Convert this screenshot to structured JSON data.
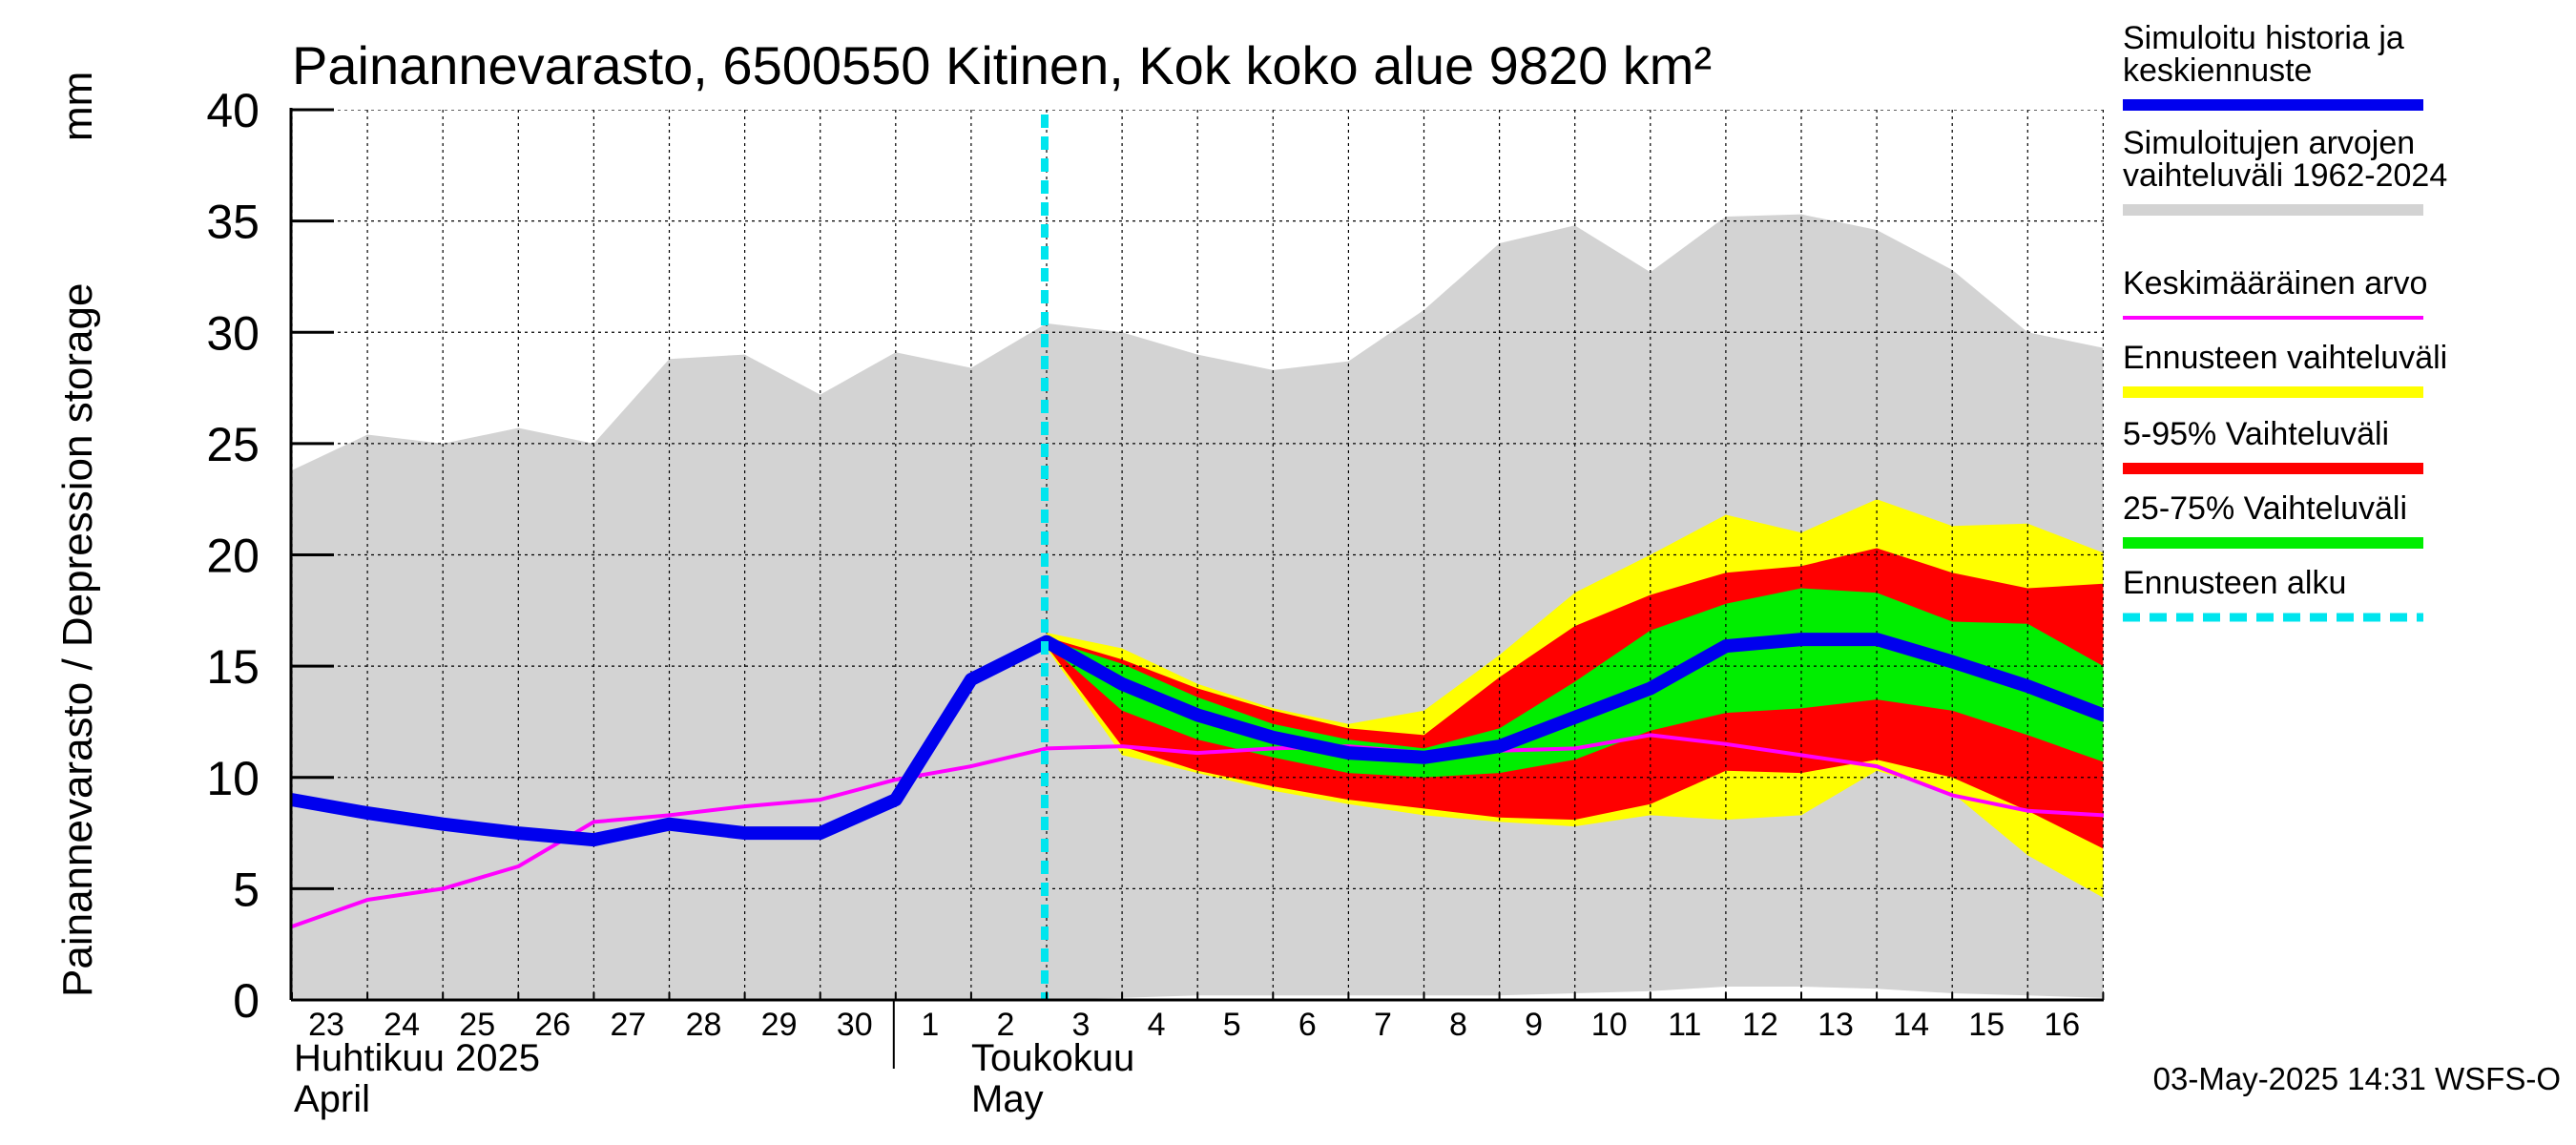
{
  "chart_data": {
    "type": "area",
    "title": "Painannevarasto, 6500550 Kitinen, Kok koko alue 9820 km²",
    "ylabel": "Painannevarasto / Depression storage",
    "yunit": "mm",
    "ylim": [
      0,
      40
    ],
    "yticks": [
      "0",
      "5",
      "10",
      "15",
      "20",
      "25",
      "30",
      "35",
      "40"
    ],
    "grid": true,
    "legend_position": "right",
    "x_day_labels": [
      "23",
      "24",
      "25",
      "26",
      "27",
      "28",
      "29",
      "30",
      "1",
      "2",
      "3",
      "4",
      "5",
      "6",
      "7",
      "8",
      "9",
      "10",
      "11",
      "12",
      "13",
      "14",
      "15",
      "16"
    ],
    "month_labels": {
      "april_fi": "Huhtikuu  2025",
      "april_en": "April",
      "may_fi": "Toukokuu",
      "may_en": "May"
    },
    "dates": [
      "2025-04-23",
      "2025-04-24",
      "2025-04-25",
      "2025-04-26",
      "2025-04-27",
      "2025-04-28",
      "2025-04-29",
      "2025-04-30",
      "2025-05-01",
      "2025-05-02",
      "2025-05-03",
      "2025-05-04",
      "2025-05-05",
      "2025-05-06",
      "2025-05-07",
      "2025-05-08",
      "2025-05-09",
      "2025-05-10",
      "2025-05-11",
      "2025-05-12",
      "2025-05-13",
      "2025-05-14",
      "2025-05-15",
      "2025-05-16",
      "2025-05-17"
    ],
    "forecast_start": "2025-05-03",
    "series": [
      {
        "name": "Simuloitujen arvojen vaihteluväli 1962-2024",
        "kind": "band",
        "color": "#d3d3d3",
        "dates": [
          "2025-04-23",
          "2025-04-24",
          "2025-04-25",
          "2025-04-26",
          "2025-04-27",
          "2025-04-28",
          "2025-04-29",
          "2025-04-30",
          "2025-05-01",
          "2025-05-02",
          "2025-05-03",
          "2025-05-04",
          "2025-05-05",
          "2025-05-06",
          "2025-05-07",
          "2025-05-08",
          "2025-05-09",
          "2025-05-10",
          "2025-05-11",
          "2025-05-12",
          "2025-05-13",
          "2025-05-14",
          "2025-05-15",
          "2025-05-16",
          "2025-05-17"
        ],
        "low": [
          0,
          0,
          0,
          0,
          0,
          0,
          0,
          0,
          0,
          0,
          0,
          0.1,
          0.2,
          0.2,
          0.2,
          0.2,
          0.2,
          0.3,
          0.4,
          0.6,
          0.6,
          0.5,
          0.3,
          0.2,
          0.1
        ],
        "high": [
          23.8,
          25.4,
          25.0,
          25.7,
          25.0,
          28.8,
          29.0,
          27.2,
          29.1,
          28.4,
          30.4,
          30.0,
          29.0,
          28.3,
          28.7,
          31.0,
          34.0,
          34.8,
          32.7,
          35.2,
          35.3,
          34.6,
          32.8,
          30.0,
          29.3
        ]
      },
      {
        "name": "Ennusteen vaihteluväli",
        "kind": "band",
        "color": "#ffff00",
        "dates": [
          "2025-05-03",
          "2025-05-04",
          "2025-05-05",
          "2025-05-06",
          "2025-05-07",
          "2025-05-08",
          "2025-05-09",
          "2025-05-10",
          "2025-05-11",
          "2025-05-12",
          "2025-05-13",
          "2025-05-14",
          "2025-05-15",
          "2025-05-16",
          "2025-05-17"
        ],
        "low": [
          15.8,
          11.0,
          10.2,
          9.4,
          8.8,
          8.3,
          8.0,
          7.8,
          8.3,
          8.1,
          8.3,
          10.3,
          9.3,
          6.5,
          4.6
        ],
        "high": [
          16.5,
          15.8,
          14.2,
          13.1,
          12.4,
          13.0,
          15.5,
          18.3,
          20.0,
          21.8,
          21.0,
          22.5,
          21.3,
          21.4,
          20.1
        ]
      },
      {
        "name": "5-95% Vaihteluväli",
        "kind": "band",
        "color": "#ff0000",
        "dates": [
          "2025-05-03",
          "2025-05-04",
          "2025-05-05",
          "2025-05-06",
          "2025-05-07",
          "2025-05-08",
          "2025-05-09",
          "2025-05-10",
          "2025-05-11",
          "2025-05-12",
          "2025-05-13",
          "2025-05-14",
          "2025-05-15",
          "2025-05-16",
          "2025-05-17"
        ],
        "low": [
          15.9,
          11.4,
          10.3,
          9.6,
          9.0,
          8.6,
          8.2,
          8.1,
          8.8,
          10.3,
          10.2,
          10.8,
          10.0,
          8.5,
          6.8
        ],
        "high": [
          16.3,
          15.3,
          14.0,
          13.0,
          12.2,
          11.9,
          14.5,
          16.8,
          18.2,
          19.2,
          19.5,
          20.3,
          19.2,
          18.5,
          18.7
        ]
      },
      {
        "name": "25-75% Vaihteluväli",
        "kind": "band",
        "color": "#00ee00",
        "dates": [
          "2025-05-03",
          "2025-05-04",
          "2025-05-05",
          "2025-05-06",
          "2025-05-07",
          "2025-05-08",
          "2025-05-09",
          "2025-05-10",
          "2025-05-11",
          "2025-05-12",
          "2025-05-13",
          "2025-05-14",
          "2025-05-15",
          "2025-05-16",
          "2025-05-17"
        ],
        "low": [
          16.0,
          13.0,
          11.7,
          10.9,
          10.2,
          10.0,
          10.2,
          10.8,
          12.1,
          12.9,
          13.1,
          13.5,
          13.0,
          11.9,
          10.7
        ],
        "high": [
          16.2,
          15.1,
          13.6,
          12.4,
          11.7,
          11.3,
          12.2,
          14.3,
          16.6,
          17.8,
          18.5,
          18.3,
          17.0,
          16.9,
          15.0
        ]
      },
      {
        "name": "Keskimääräinen arvo",
        "kind": "line",
        "color": "#ff00ff",
        "dates": [
          "2025-04-23",
          "2025-04-24",
          "2025-04-25",
          "2025-04-26",
          "2025-04-27",
          "2025-04-28",
          "2025-04-29",
          "2025-04-30",
          "2025-05-01",
          "2025-05-02",
          "2025-05-03",
          "2025-05-04",
          "2025-05-05",
          "2025-05-06",
          "2025-05-07",
          "2025-05-08",
          "2025-05-09",
          "2025-05-10",
          "2025-05-11",
          "2025-05-12",
          "2025-05-13",
          "2025-05-14",
          "2025-05-15",
          "2025-05-16",
          "2025-05-17"
        ],
        "values": [
          3.3,
          4.5,
          5.0,
          6.0,
          8.0,
          8.3,
          8.7,
          9.0,
          9.9,
          10.5,
          11.3,
          11.4,
          11.1,
          11.3,
          11.4,
          11.1,
          11.2,
          11.3,
          11.9,
          11.5,
          11.0,
          10.5,
          9.2,
          8.5,
          8.3
        ]
      },
      {
        "name": "Simuloitu historia ja keskiennuste",
        "kind": "line",
        "color": "#0000ee",
        "dates": [
          "2025-04-23",
          "2025-04-24",
          "2025-04-25",
          "2025-04-26",
          "2025-04-27",
          "2025-04-28",
          "2025-04-29",
          "2025-04-30",
          "2025-05-01",
          "2025-05-02",
          "2025-05-03",
          "2025-05-04",
          "2025-05-05",
          "2025-05-06",
          "2025-05-07",
          "2025-05-08",
          "2025-05-09",
          "2025-05-10",
          "2025-05-11",
          "2025-05-12",
          "2025-05-13",
          "2025-05-14",
          "2025-05-15",
          "2025-05-16",
          "2025-05-17"
        ],
        "values": [
          9.0,
          8.4,
          7.9,
          7.5,
          7.2,
          7.9,
          7.5,
          7.5,
          9.0,
          14.4,
          16.1,
          14.2,
          12.8,
          11.8,
          11.1,
          10.9,
          11.4,
          12.7,
          14.0,
          15.9,
          16.2,
          16.2,
          15.2,
          14.1,
          12.8
        ]
      }
    ],
    "legend": [
      {
        "label": "Simuloitu historia ja keskiennuste",
        "color": "#0000ee",
        "style": "thick"
      },
      {
        "label": "Simuloitujen arvojen vaihteluväli 1962-2024",
        "color": "#d3d3d3",
        "style": "thick"
      },
      {
        "label": "Keskimääräinen arvo",
        "color": "#ff00ff",
        "style": "thin"
      },
      {
        "label": "Ennusteen vaihteluväli",
        "color": "#ffff00",
        "style": "thick"
      },
      {
        "label": "5-95% Vaihteluväli",
        "color": "#ff0000",
        "style": "thick"
      },
      {
        "label": "25-75% Vaihteluväli",
        "color": "#00ee00",
        "style": "thick"
      },
      {
        "label": "Ennusteen alku",
        "color": "#00e5ee",
        "style": "dashed"
      }
    ],
    "footer": "03-May-2025 14:31 WSFS-O"
  }
}
